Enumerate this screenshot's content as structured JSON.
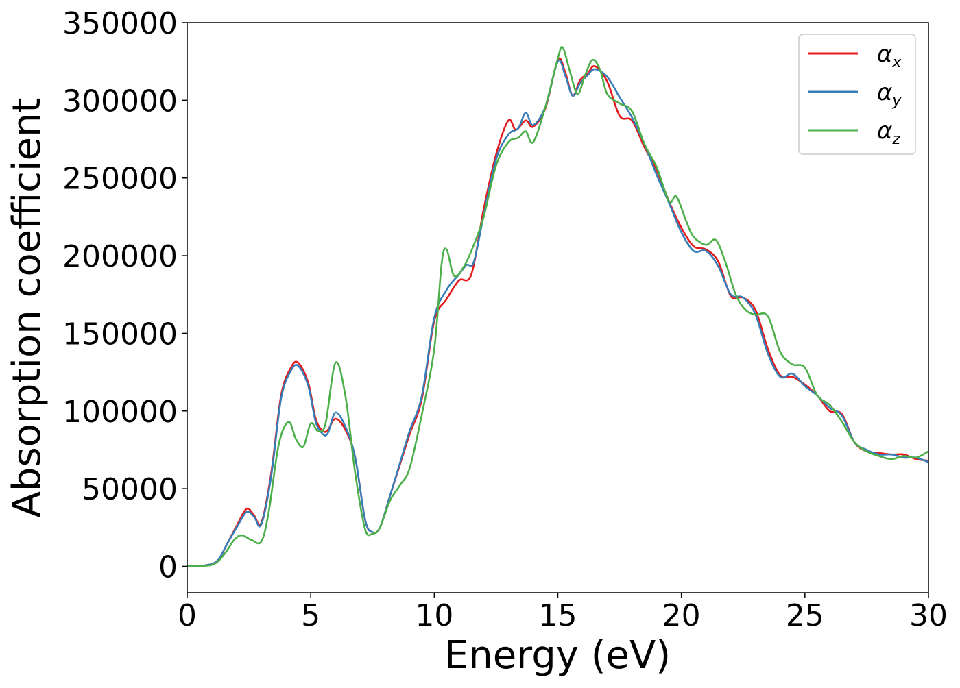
{
  "chart_data": {
    "type": "line",
    "title": "",
    "xlabel": "Energy (eV)",
    "ylabel": "Absorption coefficient",
    "xlim": [
      0,
      30
    ],
    "ylim": [
      -17000,
      350000
    ],
    "x_ticks": [
      0,
      5,
      10,
      15,
      20,
      25,
      30
    ],
    "x_tick_labels": [
      "0",
      "5",
      "10",
      "15",
      "20",
      "25",
      "30"
    ],
    "y_ticks": [
      0,
      50000,
      100000,
      150000,
      200000,
      250000,
      300000,
      350000
    ],
    "y_tick_labels": [
      "0",
      "50000",
      "100000",
      "150000",
      "200000",
      "250000",
      "300000",
      "350000"
    ],
    "grid": false,
    "legend_position": "top-right",
    "series": [
      {
        "name": "αx",
        "legend_base": "α",
        "legend_sub": "x",
        "color": "#e41a1c",
        "x": [
          0,
          0.5,
          1.0,
          1.3,
          1.6,
          2.0,
          2.4,
          2.7,
          3.0,
          3.4,
          3.8,
          4.2,
          4.5,
          4.9,
          5.2,
          5.5,
          5.7,
          6.0,
          6.4,
          6.8,
          7.2,
          7.5,
          7.8,
          8.2,
          8.6,
          9.0,
          9.5,
          10.0,
          10.5,
          11.0,
          11.5,
          12.0,
          12.5,
          13.0,
          13.3,
          13.7,
          14.0,
          14.5,
          15.0,
          15.3,
          15.6,
          15.9,
          16.2,
          16.5,
          17.0,
          17.5,
          18.0,
          18.5,
          19.0,
          19.5,
          20.0,
          20.5,
          21.0,
          21.5,
          22.0,
          22.5,
          23.0,
          23.5,
          24.0,
          24.5,
          25.0,
          25.5,
          26.0,
          26.5,
          27.0,
          27.5,
          28.0,
          28.5,
          29.0,
          29.5,
          30.0
        ],
        "y": [
          0,
          300,
          1500,
          5000,
          14000,
          26000,
          37000,
          33000,
          28000,
          60000,
          110000,
          128000,
          131000,
          118000,
          95000,
          87000,
          88000,
          95000,
          88000,
          70000,
          30000,
          22000,
          25000,
          45000,
          65000,
          85000,
          108000,
          158000,
          172000,
          184000,
          188000,
          230000,
          265000,
          287000,
          281000,
          287000,
          283000,
          295000,
          326000,
          318000,
          303000,
          313000,
          317000,
          322000,
          312000,
          290000,
          287000,
          270000,
          255000,
          235000,
          218000,
          206000,
          204000,
          196000,
          174000,
          173000,
          165000,
          140000,
          123000,
          122000,
          117000,
          110000,
          100000,
          98000,
          80000,
          74000,
          73000,
          72000,
          72000,
          69000,
          68000
        ]
      },
      {
        "name": "αy",
        "legend_base": "α",
        "legend_sub": "y",
        "color": "#377eb8",
        "x": [
          0,
          0.5,
          1.0,
          1.3,
          1.6,
          2.0,
          2.4,
          2.7,
          3.0,
          3.4,
          3.8,
          4.2,
          4.5,
          4.9,
          5.2,
          5.5,
          5.7,
          6.0,
          6.4,
          6.8,
          7.2,
          7.5,
          7.8,
          8.2,
          8.6,
          9.0,
          9.5,
          10.0,
          10.5,
          11.0,
          11.3,
          11.6,
          12.0,
          12.5,
          13.0,
          13.4,
          13.7,
          14.0,
          14.5,
          15.0,
          15.3,
          15.6,
          15.9,
          16.2,
          16.5,
          17.0,
          17.5,
          18.0,
          18.5,
          19.0,
          19.5,
          20.0,
          20.5,
          21.0,
          21.5,
          22.0,
          22.5,
          23.0,
          23.5,
          24.0,
          24.5,
          25.0,
          25.5,
          26.0,
          26.5,
          27.0,
          27.5,
          28.0,
          28.5,
          29.0,
          29.5,
          30.0
        ],
        "y": [
          0,
          300,
          1500,
          5000,
          14000,
          25000,
          35000,
          32000,
          27000,
          58000,
          108000,
          126000,
          129000,
          116000,
          93000,
          85000,
          86000,
          99000,
          90000,
          70000,
          30000,
          22000,
          25000,
          45000,
          66000,
          87000,
          110000,
          160000,
          178000,
          188000,
          194000,
          196000,
          226000,
          262000,
          278000,
          282000,
          292000,
          284000,
          296000,
          325000,
          316000,
          303000,
          311000,
          316000,
          320000,
          315000,
          302000,
          289000,
          272000,
          252000,
          234000,
          215000,
          203000,
          203000,
          193000,
          175000,
          173000,
          162000,
          137000,
          122000,
          124000,
          116000,
          110000,
          102000,
          97000,
          80000,
          75000,
          72000,
          72000,
          70000,
          70000,
          67000
        ]
      },
      {
        "name": "αz",
        "legend_base": "α",
        "legend_sub": "z",
        "color": "#4daf4a",
        "x": [
          0,
          0.5,
          1.0,
          1.3,
          1.6,
          1.9,
          2.2,
          2.6,
          3.0,
          3.3,
          3.7,
          4.1,
          4.4,
          4.7,
          5.0,
          5.3,
          5.6,
          6.0,
          6.4,
          6.8,
          7.2,
          7.5,
          7.8,
          8.2,
          8.6,
          9.0,
          9.5,
          10.0,
          10.3,
          10.5,
          10.8,
          11.2,
          11.6,
          12.0,
          12.5,
          13.0,
          13.4,
          13.7,
          14.0,
          14.5,
          15.0,
          15.2,
          15.5,
          15.8,
          16.1,
          16.4,
          16.7,
          17.0,
          17.5,
          18.0,
          18.5,
          19.0,
          19.5,
          19.8,
          20.2,
          20.5,
          21.0,
          21.4,
          21.8,
          22.2,
          22.6,
          23.0,
          23.5,
          24.0,
          24.5,
          25.0,
          25.5,
          26.0,
          26.5,
          27.0,
          27.5,
          28.0,
          28.5,
          29.0,
          29.5,
          30.0
        ],
        "y": [
          0,
          200,
          1000,
          4000,
          10000,
          17000,
          20000,
          17000,
          16000,
          35000,
          78000,
          93000,
          82000,
          77000,
          92000,
          87000,
          92000,
          131000,
          110000,
          60000,
          24000,
          21000,
          25000,
          42000,
          52000,
          63000,
          98000,
          140000,
          195000,
          204000,
          187000,
          193000,
          207000,
          225000,
          258000,
          273000,
          276000,
          280000,
          273000,
          296000,
          327000,
          334000,
          318000,
          304000,
          316000,
          326000,
          320000,
          304000,
          298000,
          293000,
          272000,
          257000,
          235000,
          238000,
          222000,
          212000,
          207000,
          210000,
          195000,
          175000,
          165000,
          162000,
          161000,
          138000,
          130000,
          128000,
          110000,
          104000,
          93000,
          80000,
          74000,
          71000,
          69000,
          71000,
          70000,
          74000
        ]
      }
    ]
  }
}
